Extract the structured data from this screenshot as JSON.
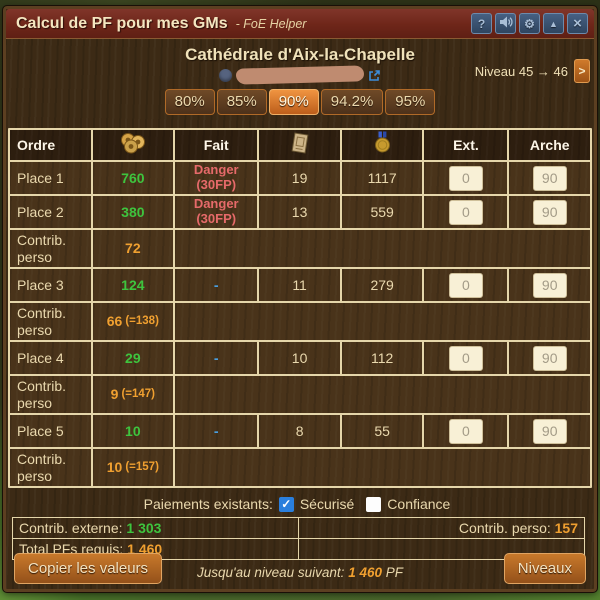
{
  "window": {
    "title": "Calcul de PF pour mes GMs",
    "subtitle": "- FoE Helper",
    "controls": {
      "help": "?",
      "settings": "⚙",
      "collapse": "▲",
      "close": "×"
    }
  },
  "header": {
    "building_name": "Cathédrale d'Aix-la-Chapelle",
    "level_label": "Niveau 45 → 46",
    "next_level_button": ">",
    "tabs": [
      {
        "label": "80%",
        "active": false
      },
      {
        "label": "85%",
        "active": false
      },
      {
        "label": "90%",
        "active": true
      },
      {
        "label": "94.2%",
        "active": false
      },
      {
        "label": "95%",
        "active": false
      }
    ]
  },
  "table": {
    "headers": {
      "ordre": "Ordre",
      "fp_icon": "forge-points-icon",
      "fait": "Fait",
      "blueprint_icon": "blueprint-icon",
      "medal_icon": "medal-icon",
      "ext": "Ext.",
      "arche": "Arche"
    },
    "rows": [
      {
        "type": "place",
        "label": "Place 1",
        "fp": "760",
        "fait": "Danger (30FP)",
        "blueprints": "19",
        "medals": "1117",
        "ext": "0",
        "arche": "90"
      },
      {
        "type": "place",
        "label": "Place 2",
        "fp": "380",
        "fait": "Danger (30FP)",
        "blueprints": "13",
        "medals": "559",
        "ext": "0",
        "arche": "90"
      },
      {
        "type": "contrib",
        "label": "Contrib. perso",
        "value": "72",
        "total": ""
      },
      {
        "type": "place",
        "label": "Place 3",
        "fp": "124",
        "fait": "-",
        "blueprints": "11",
        "medals": "279",
        "ext": "0",
        "arche": "90"
      },
      {
        "type": "contrib",
        "label": "Contrib. perso",
        "value": "66",
        "total": "(=138)"
      },
      {
        "type": "place",
        "label": "Place 4",
        "fp": "29",
        "fait": "-",
        "blueprints": "10",
        "medals": "112",
        "ext": "0",
        "arche": "90"
      },
      {
        "type": "contrib",
        "label": "Contrib. perso",
        "value": "9",
        "total": "(=147)"
      },
      {
        "type": "place",
        "label": "Place 5",
        "fp": "10",
        "fait": "-",
        "blueprints": "8",
        "medals": "55",
        "ext": "0",
        "arche": "90"
      },
      {
        "type": "contrib",
        "label": "Contrib. perso",
        "value": "10",
        "total": "(=157)"
      }
    ]
  },
  "footer": {
    "payments_label": "Paiements existants:",
    "checkboxes": [
      {
        "label": "Sécurisé",
        "checked": true
      },
      {
        "label": "Confiance",
        "checked": false
      }
    ],
    "contrib_externe_label": "Contrib. externe:",
    "contrib_externe_value": "1 303",
    "contrib_perso_label": "Contrib. perso:",
    "contrib_perso_value": "157",
    "total_label": "Total PFs requis:",
    "total_value": "1 460",
    "next_level_label": "Jusqu'au niveau suivant:",
    "next_level_value": "1 460",
    "next_level_unit": "PF",
    "copy_button": "Copier les valeurs",
    "levels_button": "Niveaux"
  },
  "colors": {
    "positive_green": "#3ec43e",
    "value_orange": "#f0a030",
    "danger_red": "#e66a6a",
    "dash_blue": "#4a9fe0",
    "checkbox_blue": "#2a7fdd",
    "tab_active_orange": "#e0822f"
  }
}
